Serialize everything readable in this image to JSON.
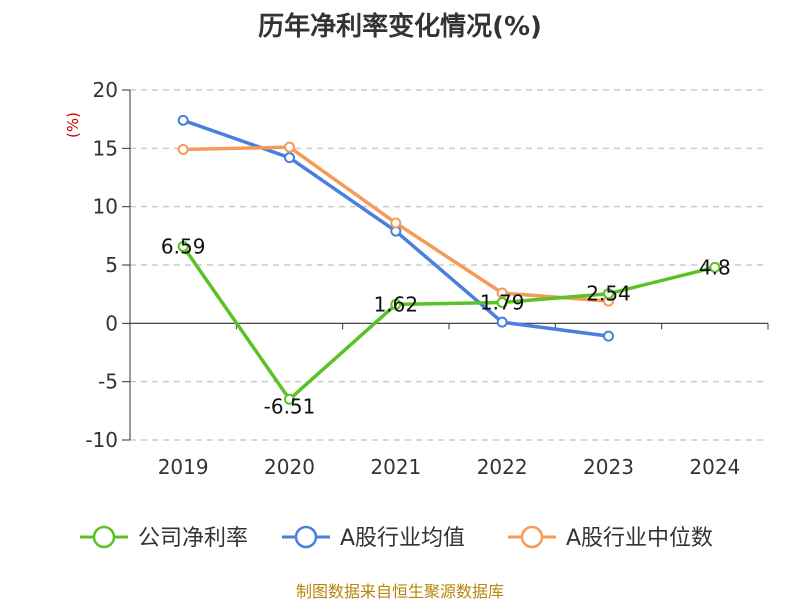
{
  "title": "历年净利率变化情况(%)",
  "source": "制图数据来自恒生聚源数据库",
  "chart_data": {
    "type": "line",
    "title": "历年净利率变化情况(%)",
    "ylabel": "(%)",
    "xlabel": "",
    "categories": [
      "2019",
      "2020",
      "2021",
      "2022",
      "2023",
      "2024"
    ],
    "ylim": [
      -10,
      20
    ],
    "yticks": [
      -10,
      -5,
      0,
      5,
      10,
      15,
      20
    ],
    "grid": true,
    "legend_position": "bottom",
    "series": [
      {
        "name": "公司净利率",
        "color": "#5bc225",
        "values": [
          6.59,
          -6.51,
          1.62,
          1.79,
          2.54,
          4.8
        ],
        "show_labels": true
      },
      {
        "name": "A股行业均值",
        "color": "#4a7fdc",
        "values": [
          17.4,
          14.2,
          7.9,
          0.1,
          -1.1,
          null
        ],
        "show_labels": false
      },
      {
        "name": "A股行业中位数",
        "color": "#f59a5b",
        "values": [
          14.9,
          15.1,
          8.6,
          2.6,
          1.9,
          null
        ],
        "show_labels": false
      }
    ],
    "data_labels": [
      "6.59",
      "-6.51",
      "1.62",
      "1.79",
      "2.54",
      "4.8"
    ]
  }
}
